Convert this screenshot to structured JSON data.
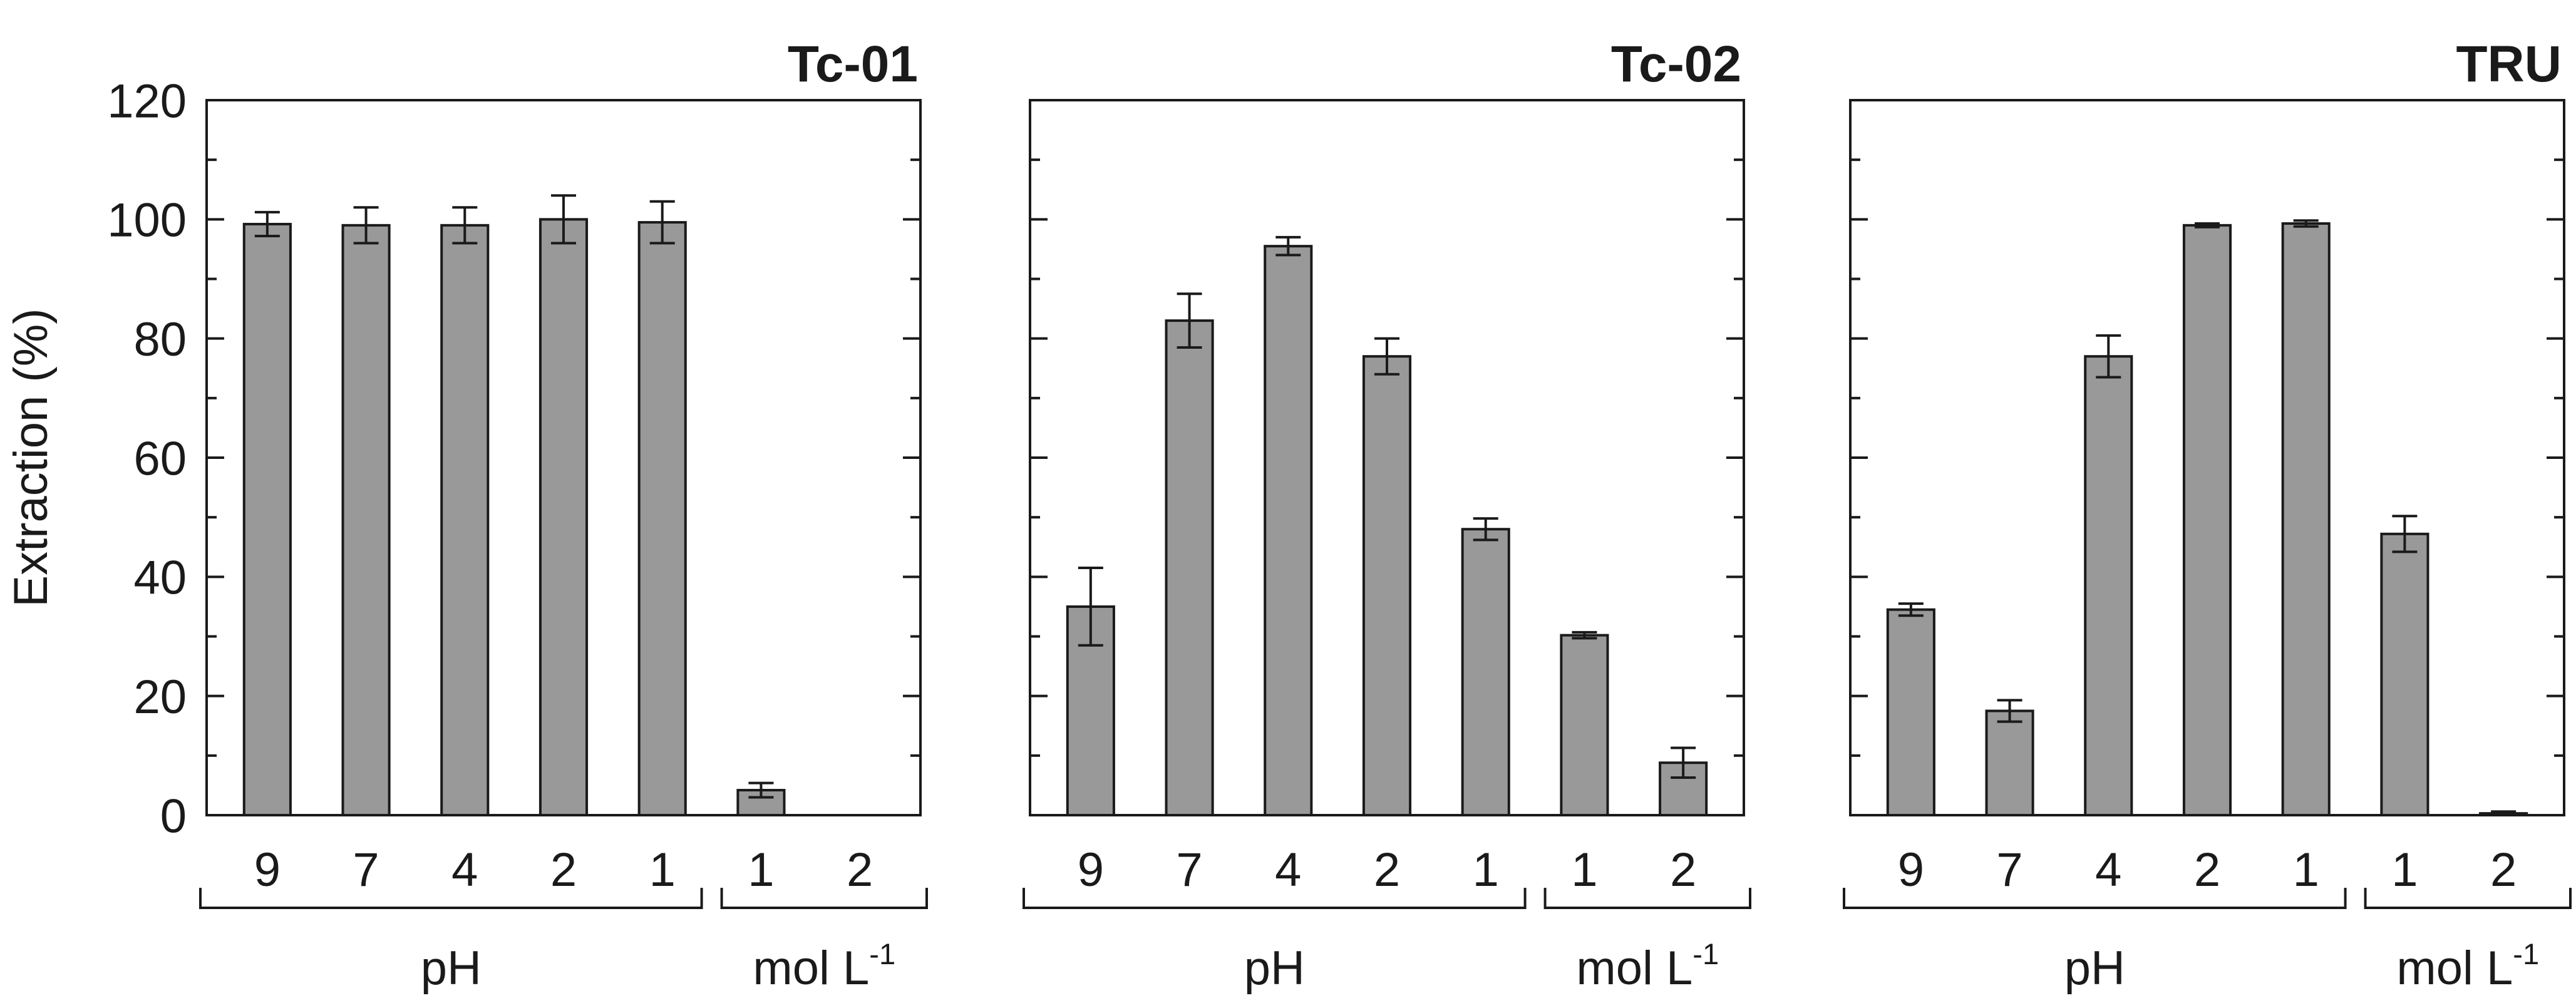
{
  "chart_data": [
    {
      "type": "bar",
      "title": "Tc-01",
      "categories": [
        "9",
        "7",
        "4",
        "2",
        "1",
        "1",
        "2"
      ],
      "values": [
        99.2,
        99.0,
        99.0,
        100.0,
        99.5,
        4.2,
        0
      ],
      "errors": [
        2.0,
        3.0,
        3.0,
        4.0,
        3.5,
        1.2,
        0
      ],
      "ylabel": "Extraction (%)",
      "ylim": [
        0,
        120
      ],
      "yticks": [
        "0",
        "20",
        "40",
        "60",
        "80",
        "100",
        "120"
      ],
      "group_labels": [
        "pH",
        "mol L"
      ],
      "bar_color": "#999999"
    },
    {
      "type": "bar",
      "title": "Tc-02",
      "categories": [
        "9",
        "7",
        "4",
        "2",
        "1",
        "1",
        "2"
      ],
      "values": [
        35.0,
        83.0,
        95.5,
        77.0,
        48.0,
        30.2,
        8.8
      ],
      "errors": [
        6.5,
        4.5,
        1.5,
        3.0,
        1.8,
        0.5,
        2.5
      ],
      "ylim": [
        0,
        120
      ],
      "group_labels": [
        "pH",
        "mol L"
      ],
      "bar_color": "#999999"
    },
    {
      "type": "bar",
      "title": "TRU",
      "categories": [
        "9",
        "7",
        "4",
        "2",
        "1",
        "1",
        "2"
      ],
      "values": [
        34.5,
        17.5,
        77.0,
        99.0,
        99.3,
        47.2,
        0.3
      ],
      "errors": [
        1.0,
        1.8,
        3.5,
        0.3,
        0.5,
        3.0,
        0.3
      ],
      "ylim": [
        0,
        120
      ],
      "group_labels": [
        "pH",
        "mol L"
      ],
      "bar_color": "#999999"
    }
  ],
  "superscript": "-1"
}
